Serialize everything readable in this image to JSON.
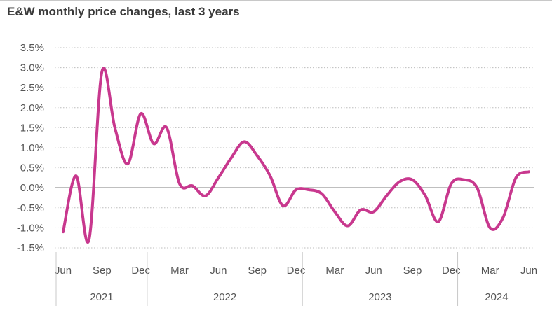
{
  "chart_data": {
    "type": "line",
    "title": "E&W monthly price changes, last 3 years",
    "xlabel": "",
    "ylabel": "",
    "ylim": [
      -1.5,
      3.5
    ],
    "yticks": [
      3.5,
      3.0,
      2.5,
      2.0,
      1.5,
      1.0,
      0.5,
      0.0,
      -0.5,
      -1.0,
      -1.5
    ],
    "ytick_labels": [
      "3.5%",
      "3.0%",
      "2.5%",
      "2.0%",
      "1.5%",
      "1.0%",
      "0.5%",
      "0.0%",
      "-0.5%",
      "-1.0%",
      "-1.5%"
    ],
    "x_month_labels": [
      "Jun",
      "Sep",
      "Dec",
      "Mar",
      "Jun",
      "Sep",
      "Dec",
      "Mar",
      "Jun",
      "Sep",
      "Dec",
      "Mar",
      "Jun"
    ],
    "x_month_label_index": [
      0,
      3,
      6,
      9,
      12,
      15,
      18,
      21,
      24,
      27,
      30,
      33,
      36
    ],
    "years": [
      {
        "label": "2021",
        "start": 0,
        "end": 6.5
      },
      {
        "label": "2022",
        "start": 6.5,
        "end": 18.5
      },
      {
        "label": "2023",
        "start": 18.5,
        "end": 30.5
      },
      {
        "label": "2024",
        "start": 30.5,
        "end": 36.5
      }
    ],
    "grid": true,
    "line_color": "#c8388e",
    "series": [
      {
        "name": "",
        "x": [
          "2021-06",
          "2021-07",
          "2021-08",
          "2021-09",
          "2021-10",
          "2021-11",
          "2021-12",
          "2022-01",
          "2022-02",
          "2022-03",
          "2022-04",
          "2022-05",
          "2022-06",
          "2022-07",
          "2022-08",
          "2022-09",
          "2022-10",
          "2022-11",
          "2022-12",
          "2023-01",
          "2023-02",
          "2023-03",
          "2023-04",
          "2023-05",
          "2023-06",
          "2023-07",
          "2023-08",
          "2023-09",
          "2023-10",
          "2023-11",
          "2023-12",
          "2024-01",
          "2024-02",
          "2024-03",
          "2024-04",
          "2024-05",
          "2024-06"
        ],
        "values": [
          -1.1,
          0.3,
          -1.3,
          2.9,
          1.5,
          0.6,
          1.85,
          1.1,
          1.5,
          0.1,
          0.05,
          -0.2,
          0.25,
          0.75,
          1.15,
          0.8,
          0.3,
          -0.45,
          -0.05,
          -0.05,
          -0.15,
          -0.6,
          -0.95,
          -0.55,
          -0.6,
          -0.2,
          0.15,
          0.2,
          -0.2,
          -0.85,
          0.1,
          0.2,
          0.0,
          -1.0,
          -0.75,
          0.25,
          0.4
        ]
      }
    ]
  }
}
